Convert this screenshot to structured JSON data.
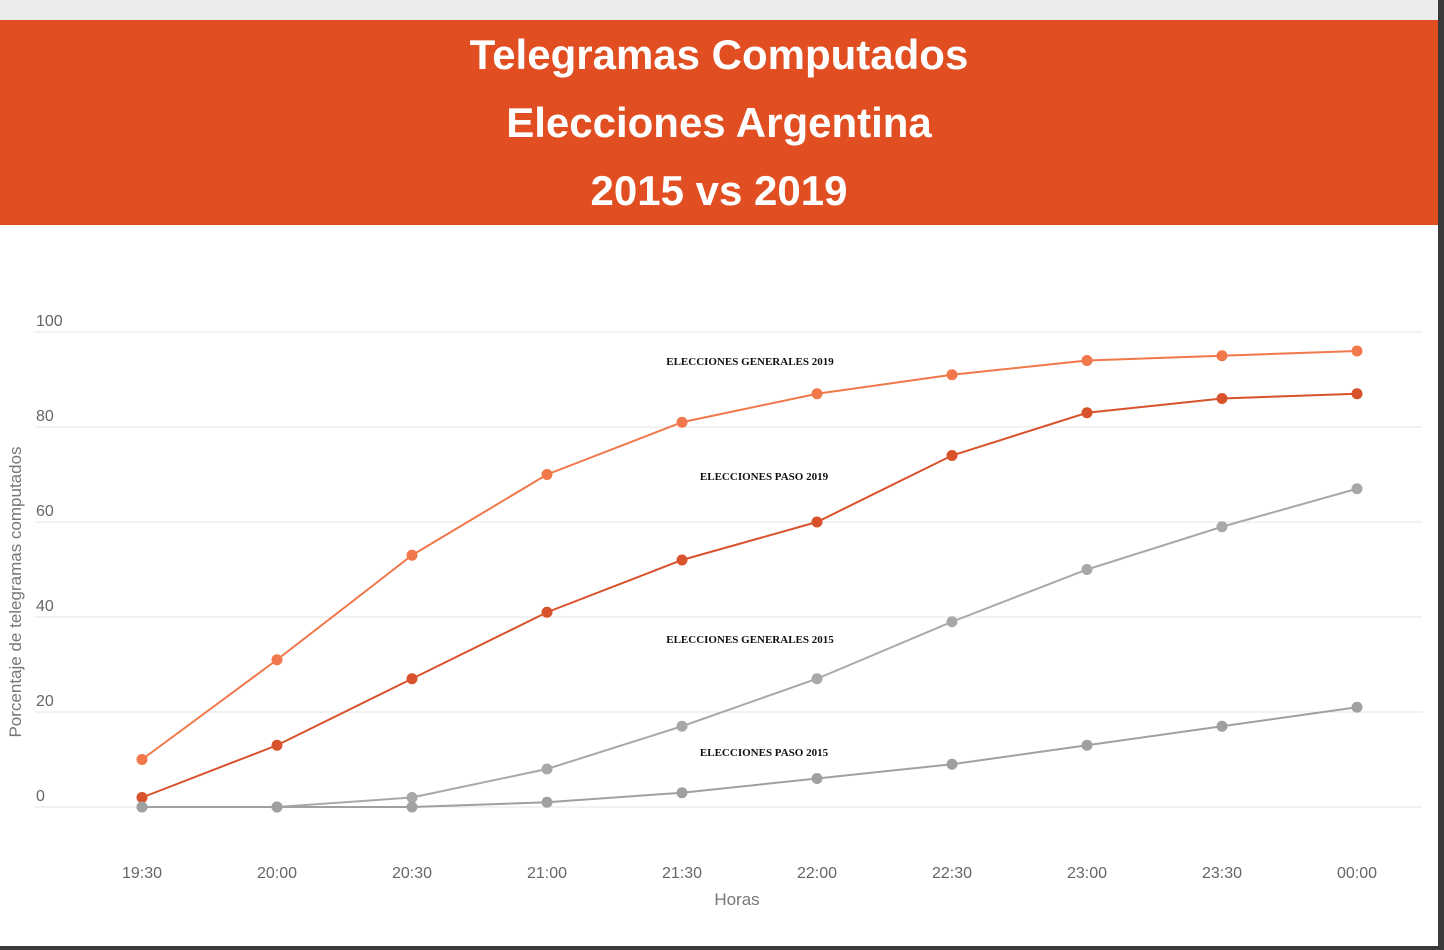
{
  "banner": {
    "line1": "Telegramas Computados",
    "line2": "Elecciones Argentina",
    "line3": "2015 vs 2019"
  },
  "colors": {
    "banner": "#e04e22",
    "generales_2019": "#f0784a",
    "paso_2019": "#d8522b",
    "generales_2015": "#a8a8a8",
    "paso_2015": "#a0a0a0",
    "grid": "#e6e6e6"
  },
  "chart_data": {
    "type": "line",
    "title": "",
    "xlabel": "Horas",
    "ylabel": "Porcentaje de telegramas computados",
    "ylim": [
      0,
      100
    ],
    "yticks": [
      0,
      20,
      40,
      60,
      80,
      100
    ],
    "grid": true,
    "legend": "none",
    "categories": [
      "19:30",
      "20:00",
      "20:30",
      "21:00",
      "21:30",
      "22:00",
      "22:30",
      "23:00",
      "23:30",
      "00:00"
    ],
    "series": [
      {
        "name": "ELECCIONES GENERALES 2019",
        "color": "#f0784a",
        "values": [
          10,
          31,
          53,
          70,
          81,
          87,
          91,
          94,
          95,
          96
        ]
      },
      {
        "name": "ELECCIONES PASO 2019",
        "color": "#d8522b",
        "values": [
          2,
          13,
          27,
          41,
          52,
          60,
          74,
          83,
          86,
          87
        ]
      },
      {
        "name": "ELECCIONES GENERALES 2015",
        "color": "#a8a8a8",
        "values": [
          0,
          0,
          2,
          8,
          17,
          27,
          39,
          50,
          59,
          67
        ]
      },
      {
        "name": "ELECCIONES PASO 2015",
        "color": "#a0a0a0",
        "values": [
          0,
          0,
          0,
          1,
          3,
          6,
          9,
          13,
          17,
          21
        ]
      }
    ]
  }
}
